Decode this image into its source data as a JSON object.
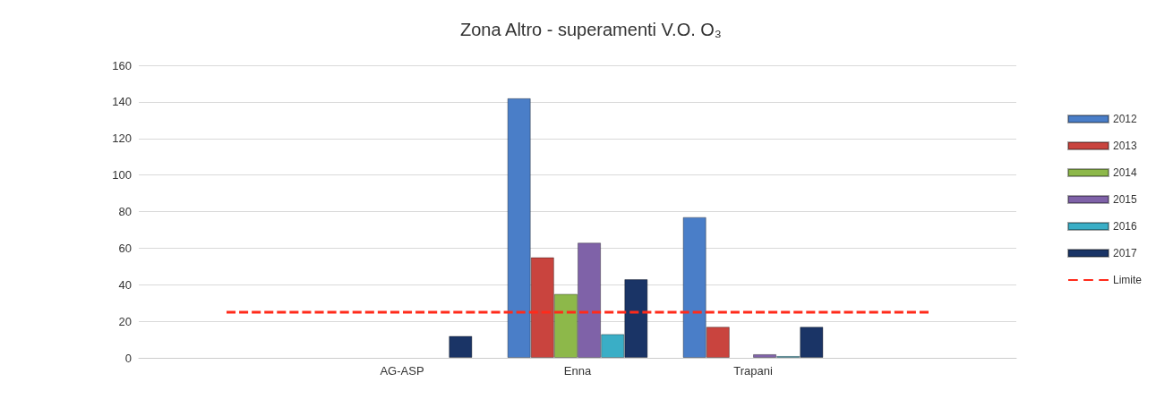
{
  "chart_data": {
    "type": "bar",
    "title": "Zona Altro - superamenti V.O. O₃",
    "categories": [
      null,
      "AG-ASP",
      "Enna",
      "Trapani",
      null
    ],
    "series": [
      {
        "name": "2012",
        "color": "#4a7ec8",
        "values": [
          null,
          null,
          142,
          77,
          null
        ]
      },
      {
        "name": "2013",
        "color": "#c9443e",
        "values": [
          null,
          null,
          55,
          17,
          null
        ]
      },
      {
        "name": "2014",
        "color": "#8db84a",
        "values": [
          null,
          null,
          35,
          null,
          null
        ]
      },
      {
        "name": "2015",
        "color": "#7f62a8",
        "values": [
          null,
          null,
          63,
          2,
          null
        ]
      },
      {
        "name": "2016",
        "color": "#3aaec6",
        "values": [
          null,
          null,
          13,
          1,
          null
        ]
      },
      {
        "name": "2017",
        "color": "#1a3466",
        "values": [
          null,
          12,
          43,
          17,
          null
        ]
      },
      {
        "name": "Limite",
        "type": "line",
        "color": "#ff2a1a",
        "line_style": "dashed",
        "marker": "none",
        "values": [
          25,
          25,
          25,
          25,
          25
        ]
      }
    ],
    "ylim": [
      0,
      160
    ],
    "yticks": [
      0,
      20,
      40,
      60,
      80,
      100,
      120,
      140,
      160
    ],
    "grid": "y",
    "legend": "right"
  }
}
